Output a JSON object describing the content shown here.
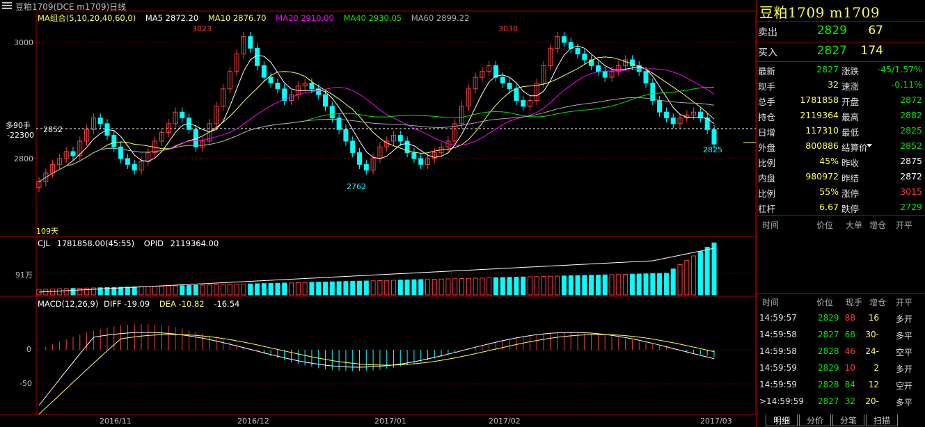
{
  "window": {
    "title": "豆粕1709(DCE m1709)日线"
  },
  "indicators": {
    "ma_label": "MA组合(5,10,20,40,60,0)",
    "ma5": "MA5 2872.20",
    "ma10": "MA10 2876.70",
    "ma20": "MA20 2910.00",
    "ma40": "MA40 2930.05",
    "ma60": "MA60 2899.22",
    "vol_label": "CJL",
    "vol_value": "1781858.00(45:55)",
    "opid_label": "OPID",
    "opid_value": "2119364.00",
    "macd_label": "MACD(12,26,9)",
    "diff": "DIFF  -19.09",
    "dea": "DEA  -10.82",
    "macd_val": "-16.54"
  },
  "price_axis": {
    "p3000": "3000",
    "p2852": "2852",
    "p2800": "2800",
    "cursor_a": "多90手",
    "cursor_b": "-22300"
  },
  "vol_axis": {
    "v91": "91万"
  },
  "macd_axis": {
    "m0": "0",
    "m50": "-50"
  },
  "annotations": {
    "high1": "3023",
    "high2": "3030",
    "low1": "2762",
    "last": "2825",
    "days": "109天"
  },
  "dates": [
    "2016/11",
    "2016/12",
    "2017/01",
    "2017/02",
    "2017/03"
  ],
  "colors": {
    "up": "#ff3c3c",
    "down": "#00ffff",
    "ma5": "#ffffff",
    "ma10": "#ffff54",
    "ma20": "#ff00ff",
    "ma40": "#00e600",
    "ma60": "#aaaaaa",
    "grid": "#a00000"
  },
  "quote": {
    "symbol": "豆粕1709 m1709",
    "sell_label": "卖出",
    "sell_price": "2829",
    "sell_vol": "67",
    "buy_label": "买入",
    "buy_price": "2827",
    "buy_vol": "174",
    "rows": [
      {
        "l1": "最新",
        "v1": "2827",
        "c1": "green",
        "l2": "涨跌",
        "v2": "-45/1.57%",
        "c2": "green"
      },
      {
        "l1": "现手",
        "v1": "32",
        "c1": "yellow",
        "l2": "速涨",
        "v2": "-0.11%",
        "c2": "green"
      },
      {
        "l1": "总手",
        "v1": "1781858",
        "c1": "yellow",
        "l2": "开盘",
        "v2": "2872",
        "c2": "green"
      },
      {
        "l1": "持仓",
        "v1": "2119364",
        "c1": "yellow",
        "l2": "最高",
        "v2": "2882",
        "c2": "green"
      },
      {
        "l1": "日增",
        "v1": "117310",
        "c1": "yellow",
        "l2": "最低",
        "v2": "2825",
        "c2": "green"
      },
      {
        "l1": "外盘",
        "v1": "800886",
        "c1": "yellow",
        "l2": "结算价",
        "v2": "2852",
        "c2": "green"
      },
      {
        "l1": "比例",
        "v1": "45%",
        "c1": "yellow",
        "l2": "昨收",
        "v2": "2875",
        "c2": "white"
      },
      {
        "l1": "内盘",
        "v1": "980972",
        "c1": "yellow",
        "l2": "昨结",
        "v2": "2872",
        "c2": "white"
      },
      {
        "l1": "比例",
        "v1": "55%",
        "c1": "yellow",
        "l2": "涨停",
        "v2": "3015",
        "c2": "red"
      },
      {
        "l1": "杠杆",
        "v1": "6.67",
        "c1": "yellow",
        "l2": "跌停",
        "v2": "2729",
        "c2": "green"
      }
    ]
  },
  "big_orders_header": {
    "time": "时间",
    "price": "价位",
    "big": "大单",
    "oi": "增仓",
    "type": "开平"
  },
  "ticks_header": {
    "time": "时间",
    "price": "价位",
    "vol": "现手",
    "oi": "增仓",
    "type": "开平"
  },
  "ticks": [
    {
      "time": "14:59:57",
      "price": "2829",
      "vol": "88",
      "vol_c": "red",
      "oi": "16",
      "type": "多开"
    },
    {
      "time": "14:59:58",
      "price": "2827",
      "vol": "68",
      "vol_c": "green",
      "oi": "-30",
      "type": "多平"
    },
    {
      "time": "14:59:58",
      "price": "2828",
      "vol": "46",
      "vol_c": "red",
      "oi": "-24",
      "type": "空平"
    },
    {
      "time": "14:59:59",
      "price": "2829",
      "vol": "10",
      "vol_c": "red",
      "oi": "2",
      "type": "多开"
    },
    {
      "time": "14:59:59",
      "price": "2828",
      "vol": "84",
      "vol_c": "green",
      "oi": "12",
      "type": "空开"
    },
    {
      "time": ">14:59:59",
      "price": "2827",
      "vol": "32",
      "vol_c": "green",
      "oi": "-20",
      "type": "多平"
    }
  ],
  "tabs": [
    "明细",
    "分价",
    "分笔",
    "扫描"
  ]
}
